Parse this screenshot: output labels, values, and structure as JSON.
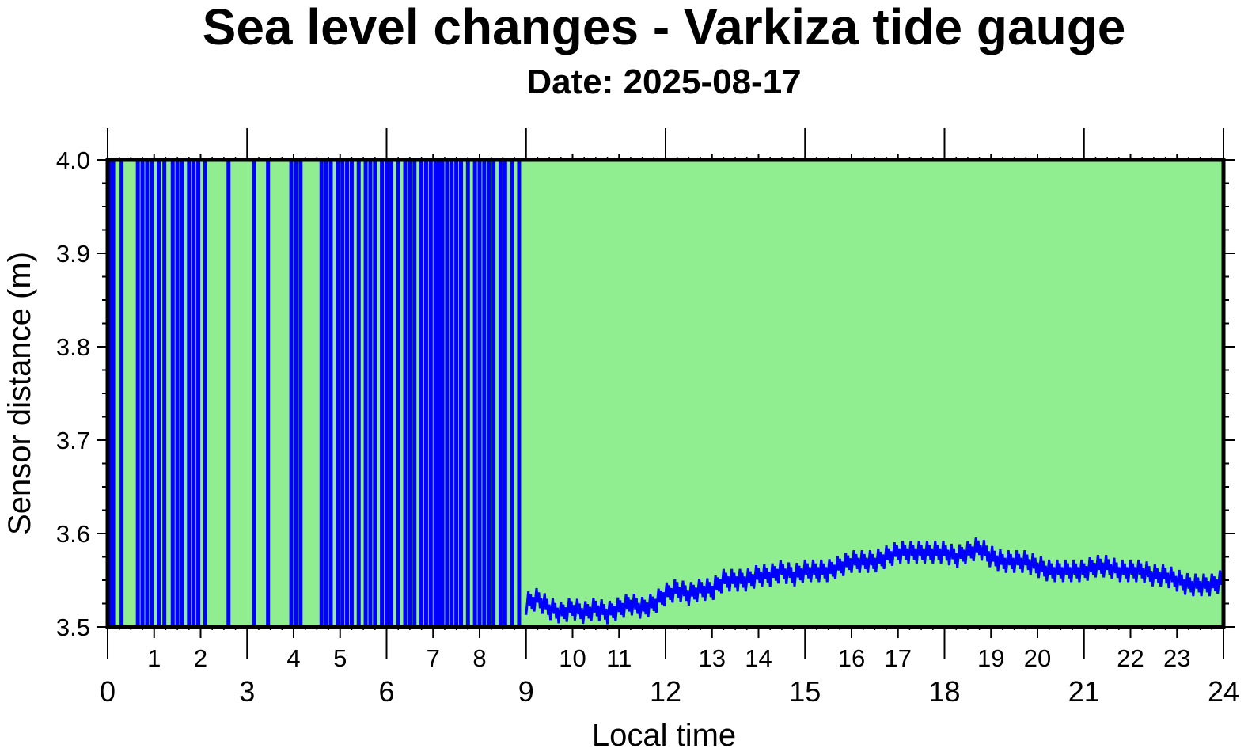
{
  "chart_data": {
    "type": "line",
    "title": "Sea level changes - Varkiza tide gauge",
    "subtitle": "Date: 2025-08-17",
    "xlabel": "Local time",
    "ylabel": "Sensor distance (m)",
    "xlim": [
      0,
      24
    ],
    "ylim": [
      3.5,
      4.0
    ],
    "y_ticks": [
      "3.5",
      "3.6",
      "3.7",
      "3.8",
      "3.9",
      "4.0"
    ],
    "x_major_ticks": [
      "0",
      "3",
      "6",
      "9",
      "12",
      "15",
      "18",
      "21",
      "24"
    ],
    "x_hour_labels": [
      "1",
      "2",
      "4",
      "5",
      "7",
      "8",
      "10",
      "11",
      "13",
      "14",
      "16",
      "17",
      "19",
      "20",
      "22",
      "23"
    ],
    "plot_background": "#90ee90",
    "series_color": "#0000ff",
    "grid": false,
    "legend": "none",
    "series": [
      {
        "description_of_early_segment": "",
        "spike_hours": [
          0.05,
          0.12,
          0.3,
          0.65,
          0.75,
          0.85,
          0.95,
          1.1,
          1.22,
          1.4,
          1.5,
          1.6,
          1.75,
          1.85,
          1.95,
          2.1,
          2.6,
          3.15,
          3.45,
          3.95,
          4.05,
          4.15,
          4.6,
          4.7,
          4.8,
          4.95,
          5.05,
          5.15,
          5.25,
          5.4,
          5.55,
          5.65,
          5.75,
          5.9,
          6.0,
          6.1,
          6.25,
          6.4,
          6.5,
          6.6,
          6.75,
          6.85,
          6.95,
          7.05,
          7.12,
          7.2,
          7.3,
          7.4,
          7.5,
          7.6,
          7.75,
          7.9,
          8.0,
          8.1,
          8.2,
          8.3,
          8.45,
          8.55,
          8.7,
          8.85
        ],
        "x": [
          9.0,
          9.25,
          9.5,
          9.75,
          10.0,
          10.25,
          10.5,
          10.75,
          11.0,
          11.25,
          11.5,
          11.75,
          12.0,
          12.25,
          12.5,
          12.75,
          13.0,
          13.25,
          13.5,
          13.75,
          14.0,
          14.25,
          14.5,
          14.75,
          15.0,
          15.25,
          15.5,
          15.75,
          16.0,
          16.25,
          16.5,
          16.75,
          17.0,
          17.25,
          17.5,
          17.75,
          18.0,
          18.25,
          18.5,
          18.75,
          19.0,
          19.25,
          19.5,
          19.75,
          20.0,
          20.25,
          20.5,
          20.75,
          21.0,
          21.25,
          21.5,
          21.75,
          22.0,
          22.25,
          22.5,
          22.75,
          23.0,
          23.25,
          23.5,
          23.75,
          24.0
        ],
        "y": [
          3.525,
          3.53,
          3.52,
          3.515,
          3.52,
          3.515,
          3.52,
          3.515,
          3.52,
          3.525,
          3.52,
          3.525,
          3.535,
          3.54,
          3.535,
          3.54,
          3.54,
          3.55,
          3.55,
          3.55,
          3.555,
          3.555,
          3.56,
          3.555,
          3.56,
          3.56,
          3.56,
          3.565,
          3.57,
          3.57,
          3.57,
          3.575,
          3.58,
          3.58,
          3.58,
          3.58,
          3.58,
          3.575,
          3.58,
          3.585,
          3.575,
          3.57,
          3.57,
          3.57,
          3.565,
          3.56,
          3.56,
          3.56,
          3.56,
          3.565,
          3.565,
          3.56,
          3.56,
          3.56,
          3.555,
          3.555,
          3.55,
          3.545,
          3.545,
          3.545,
          3.55
        ]
      }
    ]
  }
}
